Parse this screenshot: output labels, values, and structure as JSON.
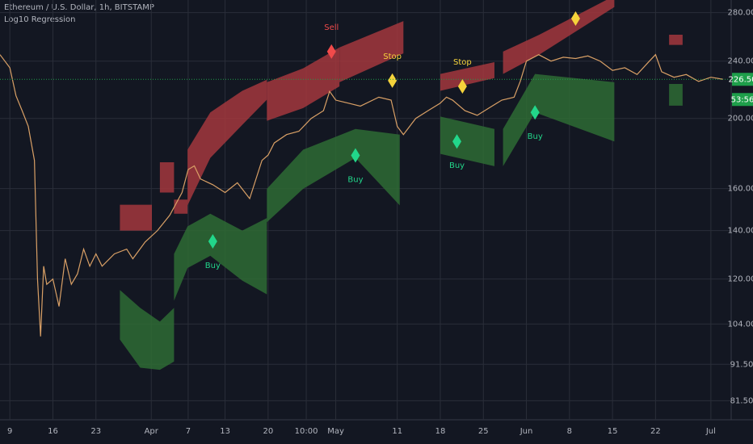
{
  "chart_data": {
    "type": "line",
    "title": "Ethereum / U.S. Dollar, 1h, BITSTAMP",
    "subtitle": "Log10 Regression",
    "log_scale": true,
    "grid": true,
    "xlim": [
      -1.6,
      117.3
    ],
    "ylim": [
      76.7,
      291.5
    ],
    "xticks": [
      {
        "value": 0,
        "label": "9"
      },
      {
        "value": 7,
        "label": "16"
      },
      {
        "value": 14,
        "label": "23"
      },
      {
        "value": 23,
        "label": "Apr"
      },
      {
        "value": 29,
        "label": "7"
      },
      {
        "value": 35,
        "label": "13"
      },
      {
        "value": 42,
        "label": "20"
      },
      {
        "value": 48.2,
        "label": "10:00"
      },
      {
        "value": 53,
        "label": "May"
      },
      {
        "value": 63,
        "label": "11"
      },
      {
        "value": 70,
        "label": "18"
      },
      {
        "value": 77,
        "label": "25"
      },
      {
        "value": 84,
        "label": "Jun"
      },
      {
        "value": 91,
        "label": "8"
      },
      {
        "value": 98,
        "label": "15"
      },
      {
        "value": 105,
        "label": "22"
      },
      {
        "value": 114,
        "label": "Jul"
      }
    ],
    "yticks": [
      {
        "value": 81.5,
        "label": "81.50"
      },
      {
        "value": 91.5,
        "label": "91.50"
      },
      {
        "value": 104,
        "label": "104.00"
      },
      {
        "value": 120,
        "label": "120.00"
      },
      {
        "value": 140,
        "label": "140.00"
      },
      {
        "value": 160,
        "label": "160.00"
      },
      {
        "value": 200,
        "label": "200.00"
      },
      {
        "value": 240,
        "label": "240.00"
      },
      {
        "value": 280,
        "label": "280.00"
      }
    ],
    "series": [
      {
        "color": "#d9a066",
        "x": [
          -1.6,
          0,
          1,
          2,
          3,
          4,
          4.5,
          5,
          5.5,
          6,
          7,
          8,
          9,
          10,
          11,
          12,
          13,
          14,
          15,
          17,
          19,
          20,
          22,
          24,
          26,
          28,
          29,
          30,
          31,
          33,
          35,
          37,
          39,
          41,
          42,
          43,
          45,
          47,
          49,
          51,
          52,
          53,
          55,
          57,
          60,
          62,
          63,
          64,
          66,
          68,
          70,
          71,
          72,
          74,
          76,
          78,
          80,
          82,
          83,
          84,
          86,
          88,
          90,
          92,
          94,
          96,
          98,
          100,
          102,
          104,
          105,
          106,
          108,
          110,
          112,
          114,
          116
        ],
        "values": [
          245,
          235,
          215,
          205,
          195,
          175,
          120,
          100,
          125,
          118,
          120,
          110,
          128,
          118,
          122,
          132,
          125,
          130,
          125,
          130,
          132,
          128,
          135,
          140,
          147,
          158,
          170,
          172,
          165,
          162,
          158,
          163,
          155,
          175,
          178,
          185,
          190,
          192,
          200,
          205,
          218,
          212,
          210,
          208,
          214,
          212,
          195,
          190,
          200,
          205,
          210,
          214,
          212,
          205,
          202,
          207,
          212,
          214,
          225,
          240,
          245,
          240,
          243,
          242,
          244,
          240,
          233,
          235,
          230,
          240,
          245,
          232,
          228,
          230,
          225,
          228,
          226.5
        ]
      }
    ],
    "bands": [
      {
        "color": "#a3373d",
        "x": [
          17.9,
          23.1
        ],
        "high": [
          152,
          152
        ],
        "low": [
          140,
          140
        ]
      },
      {
        "color": "#a3373d",
        "x": [
          24.4,
          26.7
        ],
        "high": [
          174,
          174
        ],
        "low": [
          158,
          158
        ]
      },
      {
        "color": "#a3373d",
        "x": [
          26.7,
          28.9
        ],
        "high": [
          154.5,
          154.5
        ],
        "low": [
          147.7,
          147.7
        ]
      },
      {
        "color": "#a3373d",
        "x": [
          28.9,
          32.6,
          37.8,
          41.8
        ],
        "high": [
          181.1,
          203.9,
          218.4,
          226.2
        ],
        "low": [
          151.7,
          176.4,
          196,
          212.3
        ]
      },
      {
        "color": "#a3373d",
        "x": [
          41.8,
          47.7,
          53.6
        ],
        "high": [
          224.4,
          234.6,
          250.7
        ],
        "low": [
          198.5,
          206.7,
          221.5
        ]
      },
      {
        "color": "#a3373d",
        "x": [
          53.6,
          64
        ],
        "high": [
          250.7,
          272.6
        ],
        "low": [
          224.4,
          246
        ]
      },
      {
        "color": "#a3373d",
        "x": [
          70,
          78.8
        ],
        "high": [
          230.4,
          239.2
        ],
        "low": [
          218.4,
          227.4
        ]
      },
      {
        "color": "#a3373d",
        "x": [
          80.2,
          86.1,
          98.3
        ],
        "high": [
          247.4,
          261,
          295.4
        ],
        "low": [
          230.4,
          245,
          285
        ]
      },
      {
        "color": "#a3373d",
        "x": [
          107.2,
          109.4
        ],
        "high": [
          261,
          261
        ],
        "low": [
          252.7,
          252.7
        ]
      },
      {
        "color": "#2e6b34",
        "x": [
          17.9,
          21.2,
          24.4,
          26.7
        ],
        "high": [
          115.9,
          109.5,
          104.8,
          109.5
        ],
        "low": [
          99,
          90.5,
          89.9,
          92.3
        ]
      },
      {
        "color": "#2e6b34",
        "x": [
          26.7,
          28.9,
          32.6,
          37.8,
          41.8
        ],
        "high": [
          130,
          141.9,
          147.7,
          140,
          145.7
        ],
        "low": [
          112,
          124.3,
          129.2,
          119.4,
          114.3
        ]
      },
      {
        "color": "#2e6b34",
        "x": [
          41.8,
          47.7,
          56.2,
          63.4
        ],
        "high": [
          159.9,
          181.1,
          193.4,
          190
        ],
        "low": [
          143.8,
          159.9,
          176.4,
          151.7
        ]
      },
      {
        "color": "#2e6b34",
        "x": [
          70,
          78.8
        ],
        "high": [
          201.2,
          193.4
        ],
        "low": [
          178.7,
          171.8
        ]
      },
      {
        "color": "#2e6b34",
        "x": [
          80.2,
          85.4,
          98.3
        ],
        "high": [
          193.4,
          230.4,
          224.4
        ],
        "low": [
          171.8,
          203.9,
          185.9
        ]
      },
      {
        "color": "#2e6b34",
        "x": [
          107.2,
          109.4
        ],
        "high": [
          223.2,
          223.2
        ],
        "low": [
          208.3,
          208.3
        ]
      }
    ],
    "signals": [
      {
        "label": "Sell",
        "x": 52.3,
        "y": 247.4,
        "color": "#f04a4a",
        "label_position": "above"
      },
      {
        "label": "Stop",
        "x": 62.2,
        "y": 225.6,
        "color": "#f5d33b",
        "label_position": "above"
      },
      {
        "label": "Buy",
        "x": 56.2,
        "y": 177.8,
        "color": "#22d68a",
        "label_position": "below"
      },
      {
        "label": "Buy",
        "x": 33,
        "y": 135.3,
        "color": "#22d68a",
        "label_position": "below"
      },
      {
        "label": "Stop",
        "x": 73.6,
        "y": 221.5,
        "color": "#f5d33b",
        "label_position": "above"
      },
      {
        "label": "Buy",
        "x": 72.7,
        "y": 185.9,
        "color": "#22d68a",
        "label_position": "below"
      },
      {
        "label": "Buy",
        "x": 85.4,
        "y": 203.9,
        "color": "#22d68a",
        "label_position": "below"
      },
      {
        "label": null,
        "x": 92,
        "y": 274.8,
        "color": "#f5d33b",
        "label_position": "above"
      }
    ],
    "last_price": {
      "value": 226.5,
      "label": "226.50",
      "color": "#1e9e4a"
    },
    "countdown": "53:56"
  }
}
